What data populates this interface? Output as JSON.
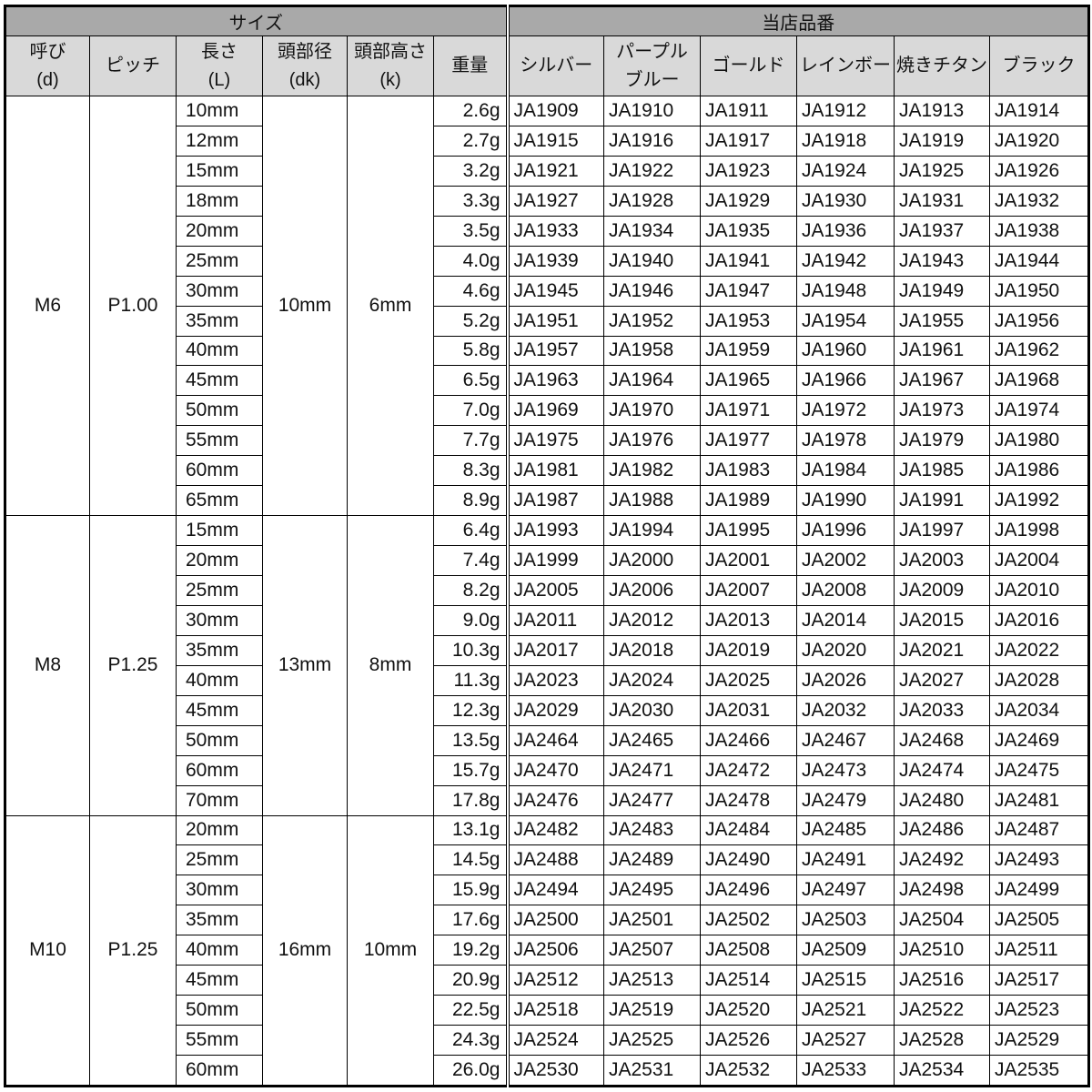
{
  "header": {
    "size_group": "サイズ",
    "code_group": "当店品番",
    "columns": [
      {
        "line1": "呼び",
        "line2": "(d)"
      },
      {
        "line1": "ピッチ",
        "line2": ""
      },
      {
        "line1": "長さ",
        "line2": "(L)"
      },
      {
        "line1": "頭部径",
        "line2": "(dk)"
      },
      {
        "line1": "頭部高さ",
        "line2": "(k)"
      },
      {
        "line1": "重量",
        "line2": ""
      }
    ],
    "colors": [
      {
        "line1": "シルバー",
        "line2": ""
      },
      {
        "line1": "パープル",
        "line2": "ブルー"
      },
      {
        "line1": "ゴールド",
        "line2": ""
      },
      {
        "line1": "レインボー",
        "line2": ""
      },
      {
        "line1": "焼きチタン",
        "line2": ""
      },
      {
        "line1": "ブラック",
        "line2": ""
      }
    ]
  },
  "colors_theme": {
    "header_dark": "#a9a9a9",
    "header_light": "#d9d9d9"
  },
  "groups": [
    {
      "size": "M6",
      "pitch": "P1.00",
      "head_diameter": "10mm",
      "head_height": "6mm",
      "rows": [
        {
          "length": "10mm",
          "weight": "2.6g",
          "codes": [
            "JA1909",
            "JA1910",
            "JA1911",
            "JA1912",
            "JA1913",
            "JA1914"
          ]
        },
        {
          "length": "12mm",
          "weight": "2.7g",
          "codes": [
            "JA1915",
            "JA1916",
            "JA1917",
            "JA1918",
            "JA1919",
            "JA1920"
          ]
        },
        {
          "length": "15mm",
          "weight": "3.2g",
          "codes": [
            "JA1921",
            "JA1922",
            "JA1923",
            "JA1924",
            "JA1925",
            "JA1926"
          ]
        },
        {
          "length": "18mm",
          "weight": "3.3g",
          "codes": [
            "JA1927",
            "JA1928",
            "JA1929",
            "JA1930",
            "JA1931",
            "JA1932"
          ]
        },
        {
          "length": "20mm",
          "weight": "3.5g",
          "codes": [
            "JA1933",
            "JA1934",
            "JA1935",
            "JA1936",
            "JA1937",
            "JA1938"
          ]
        },
        {
          "length": "25mm",
          "weight": "4.0g",
          "codes": [
            "JA1939",
            "JA1940",
            "JA1941",
            "JA1942",
            "JA1943",
            "JA1944"
          ]
        },
        {
          "length": "30mm",
          "weight": "4.6g",
          "codes": [
            "JA1945",
            "JA1946",
            "JA1947",
            "JA1948",
            "JA1949",
            "JA1950"
          ]
        },
        {
          "length": "35mm",
          "weight": "5.2g",
          "codes": [
            "JA1951",
            "JA1952",
            "JA1953",
            "JA1954",
            "JA1955",
            "JA1956"
          ]
        },
        {
          "length": "40mm",
          "weight": "5.8g",
          "codes": [
            "JA1957",
            "JA1958",
            "JA1959",
            "JA1960",
            "JA1961",
            "JA1962"
          ]
        },
        {
          "length": "45mm",
          "weight": "6.5g",
          "codes": [
            "JA1963",
            "JA1964",
            "JA1965",
            "JA1966",
            "JA1967",
            "JA1968"
          ]
        },
        {
          "length": "50mm",
          "weight": "7.0g",
          "codes": [
            "JA1969",
            "JA1970",
            "JA1971",
            "JA1972",
            "JA1973",
            "JA1974"
          ]
        },
        {
          "length": "55mm",
          "weight": "7.7g",
          "codes": [
            "JA1975",
            "JA1976",
            "JA1977",
            "JA1978",
            "JA1979",
            "JA1980"
          ]
        },
        {
          "length": "60mm",
          "weight": "8.3g",
          "codes": [
            "JA1981",
            "JA1982",
            "JA1983",
            "JA1984",
            "JA1985",
            "JA1986"
          ]
        },
        {
          "length": "65mm",
          "weight": "8.9g",
          "codes": [
            "JA1987",
            "JA1988",
            "JA1989",
            "JA1990",
            "JA1991",
            "JA1992"
          ]
        }
      ]
    },
    {
      "size": "M8",
      "pitch": "P1.25",
      "head_diameter": "13mm",
      "head_height": "8mm",
      "rows": [
        {
          "length": "15mm",
          "weight": "6.4g",
          "codes": [
            "JA1993",
            "JA1994",
            "JA1995",
            "JA1996",
            "JA1997",
            "JA1998"
          ]
        },
        {
          "length": "20mm",
          "weight": "7.4g",
          "codes": [
            "JA1999",
            "JA2000",
            "JA2001",
            "JA2002",
            "JA2003",
            "JA2004"
          ]
        },
        {
          "length": "25mm",
          "weight": "8.2g",
          "codes": [
            "JA2005",
            "JA2006",
            "JA2007",
            "JA2008",
            "JA2009",
            "JA2010"
          ]
        },
        {
          "length": "30mm",
          "weight": "9.0g",
          "codes": [
            "JA2011",
            "JA2012",
            "JA2013",
            "JA2014",
            "JA2015",
            "JA2016"
          ]
        },
        {
          "length": "35mm",
          "weight": "10.3g",
          "codes": [
            "JA2017",
            "JA2018",
            "JA2019",
            "JA2020",
            "JA2021",
            "JA2022"
          ]
        },
        {
          "length": "40mm",
          "weight": "11.3g",
          "codes": [
            "JA2023",
            "JA2024",
            "JA2025",
            "JA2026",
            "JA2027",
            "JA2028"
          ]
        },
        {
          "length": "45mm",
          "weight": "12.3g",
          "codes": [
            "JA2029",
            "JA2030",
            "JA2031",
            "JA2032",
            "JA2033",
            "JA2034"
          ]
        },
        {
          "length": "50mm",
          "weight": "13.5g",
          "codes": [
            "JA2464",
            "JA2465",
            "JA2466",
            "JA2467",
            "JA2468",
            "JA2469"
          ]
        },
        {
          "length": "60mm",
          "weight": "15.7g",
          "codes": [
            "JA2470",
            "JA2471",
            "JA2472",
            "JA2473",
            "JA2474",
            "JA2475"
          ]
        },
        {
          "length": "70mm",
          "weight": "17.8g",
          "codes": [
            "JA2476",
            "JA2477",
            "JA2478",
            "JA2479",
            "JA2480",
            "JA2481"
          ]
        }
      ]
    },
    {
      "size": "M10",
      "pitch": "P1.25",
      "head_diameter": "16mm",
      "head_height": "10mm",
      "rows": [
        {
          "length": "20mm",
          "weight": "13.1g",
          "codes": [
            "JA2482",
            "JA2483",
            "JA2484",
            "JA2485",
            "JA2486",
            "JA2487"
          ]
        },
        {
          "length": "25mm",
          "weight": "14.5g",
          "codes": [
            "JA2488",
            "JA2489",
            "JA2490",
            "JA2491",
            "JA2492",
            "JA2493"
          ]
        },
        {
          "length": "30mm",
          "weight": "15.9g",
          "codes": [
            "JA2494",
            "JA2495",
            "JA2496",
            "JA2497",
            "JA2498",
            "JA2499"
          ]
        },
        {
          "length": "35mm",
          "weight": "17.6g",
          "codes": [
            "JA2500",
            "JA2501",
            "JA2502",
            "JA2503",
            "JA2504",
            "JA2505"
          ]
        },
        {
          "length": "40mm",
          "weight": "19.2g",
          "codes": [
            "JA2506",
            "JA2507",
            "JA2508",
            "JA2509",
            "JA2510",
            "JA2511"
          ]
        },
        {
          "length": "45mm",
          "weight": "20.9g",
          "codes": [
            "JA2512",
            "JA2513",
            "JA2514",
            "JA2515",
            "JA2516",
            "JA2517"
          ]
        },
        {
          "length": "50mm",
          "weight": "22.5g",
          "codes": [
            "JA2518",
            "JA2519",
            "JA2520",
            "JA2521",
            "JA2522",
            "JA2523"
          ]
        },
        {
          "length": "55mm",
          "weight": "24.3g",
          "codes": [
            "JA2524",
            "JA2525",
            "JA2526",
            "JA2527",
            "JA2528",
            "JA2529"
          ]
        },
        {
          "length": "60mm",
          "weight": "26.0g",
          "codes": [
            "JA2530",
            "JA2531",
            "JA2532",
            "JA2533",
            "JA2534",
            "JA2535"
          ]
        }
      ]
    }
  ]
}
